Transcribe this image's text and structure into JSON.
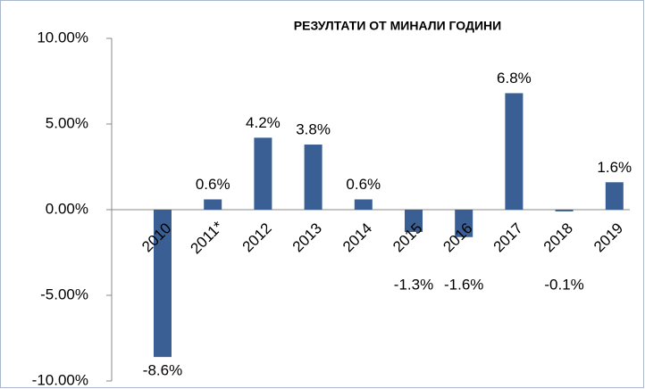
{
  "chart_data": {
    "type": "bar",
    "title": "РЕЗУЛТАТИ ОТ МИНАЛИ ГОДИНИ",
    "categories": [
      "2010",
      "2011*",
      "2012",
      "2013",
      "2014",
      "2015",
      "2016",
      "2017",
      "2018",
      "2019"
    ],
    "values": [
      -8.6,
      0.6,
      4.2,
      3.8,
      0.6,
      -1.3,
      -1.6,
      6.8,
      -0.1,
      1.6
    ],
    "value_labels": [
      "-8.6%",
      "0.6%",
      "4.2%",
      "3.8%",
      "0.6%",
      "-1.3%",
      "-1.6%",
      "6.8%",
      "-0.1%",
      "1.6%"
    ],
    "color": "#3a5f95",
    "ylim": [
      -10,
      10
    ],
    "yticks": [
      {
        "value": -10,
        "label": "-10.00%"
      },
      {
        "value": -5,
        "label": "-5.00%"
      },
      {
        "value": 0,
        "label": "0.00%"
      },
      {
        "value": 5,
        "label": "5.00%"
      },
      {
        "value": 10,
        "label": "10.00%"
      }
    ]
  }
}
